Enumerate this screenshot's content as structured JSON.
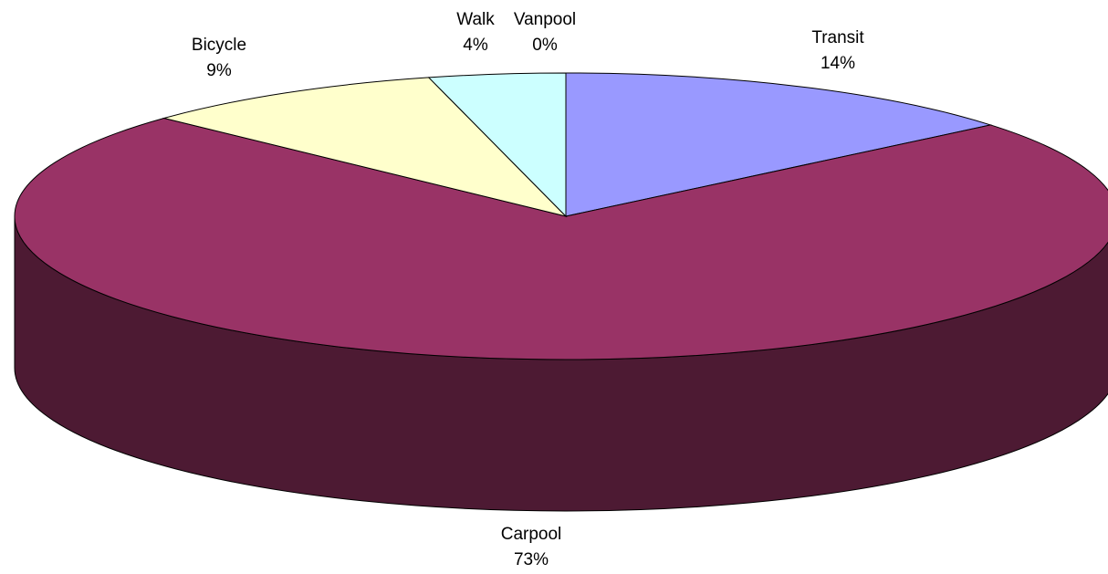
{
  "chart_data": {
    "type": "pie",
    "categories": [
      "Transit",
      "Carpool",
      "Bicycle",
      "Walk",
      "Vanpool"
    ],
    "values": [
      14,
      73,
      9,
      4,
      0
    ],
    "value_labels": [
      "14%",
      "73%",
      "9%",
      "4%",
      "0%"
    ],
    "colors": [
      "#9999ff",
      "#993366",
      "#ffffcc",
      "#ccffff",
      "#660066"
    ]
  }
}
